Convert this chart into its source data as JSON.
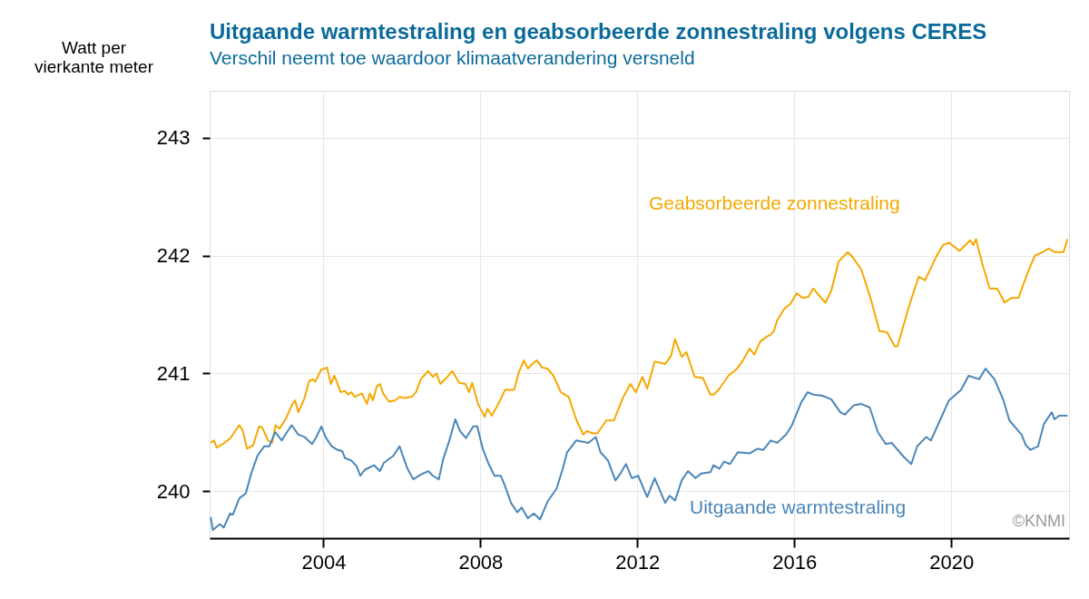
{
  "chart_data": {
    "type": "line",
    "title": "Uitgaande warmtestraling en geabsorbeerde zonnestraling volgens CERES",
    "subtitle": "Verschil neemt toe waardoor klimaatverandering versneld",
    "ylabel": "Watt per vierkante meter",
    "xlim": [
      2001.1,
      2023.0
    ],
    "xticks": [
      2004,
      2008,
      2012,
      2016,
      2020
    ],
    "ylim": [
      239.6,
      243.4
    ],
    "yticks": [
      240,
      241,
      242,
      243
    ],
    "grid": true,
    "annotations": [
      "©KNMI"
    ],
    "series": [
      {
        "name": "Geabsorbeerde zonnestraling",
        "color": "#f5a800",
        "x": [
          2001.13,
          2001.21,
          2001.28,
          2001.44,
          2001.63,
          2001.71,
          2001.86,
          2001.95,
          2002.05,
          2002.21,
          2002.36,
          2002.44,
          2002.59,
          2002.69,
          2002.78,
          2002.88,
          2003.05,
          2003.21,
          2003.28,
          2003.36,
          2003.52,
          2003.63,
          2003.72,
          2003.79,
          2003.94,
          2004.09,
          2004.19,
          2004.28,
          2004.44,
          2004.55,
          2004.63,
          2004.71,
          2004.8,
          2004.98,
          2005.11,
          2005.18,
          2005.26,
          2005.36,
          2005.44,
          2005.52,
          2005.67,
          2005.82,
          2005.94,
          2006.05,
          2006.25,
          2006.36,
          2006.48,
          2006.67,
          2006.79,
          2006.88,
          2006.98,
          2007.13,
          2007.28,
          2007.46,
          2007.62,
          2007.71,
          2007.79,
          2007.94,
          2008.11,
          2008.18,
          2008.29,
          2008.44,
          2008.63,
          2008.86,
          2008.98,
          2009.11,
          2009.21,
          2009.32,
          2009.44,
          2009.57,
          2009.71,
          2009.86,
          2010.05,
          2010.25,
          2010.44,
          2010.62,
          2010.71,
          2010.86,
          2010.98,
          2011.21,
          2011.4,
          2011.63,
          2011.82,
          2011.96,
          2012.13,
          2012.25,
          2012.44,
          2012.71,
          2012.86,
          2012.96,
          2013.13,
          2013.25,
          2013.46,
          2013.67,
          2013.86,
          2013.95,
          2014.09,
          2014.32,
          2014.54,
          2014.67,
          2014.86,
          2014.98,
          2015.13,
          2015.29,
          2015.4,
          2015.48,
          2015.56,
          2015.75,
          2015.9,
          2016.06,
          2016.21,
          2016.36,
          2016.48,
          2016.79,
          2016.94,
          2017.13,
          2017.36,
          2017.48,
          2017.71,
          2017.94,
          2018.17,
          2018.36,
          2018.56,
          2018.63,
          2018.94,
          2019.17,
          2019.33,
          2019.63,
          2019.79,
          2019.94,
          2020.21,
          2020.48,
          2020.56,
          2020.63,
          2020.79,
          2020.98,
          2021.17,
          2021.36,
          2021.52,
          2021.71,
          2021.94,
          2022.13,
          2022.33,
          2022.48,
          2022.63,
          2022.86,
          2022.96
        ],
        "values": [
          240.41,
          240.43,
          240.37,
          240.4,
          240.45,
          240.49,
          240.56,
          240.51,
          240.36,
          240.39,
          240.55,
          240.54,
          240.43,
          240.41,
          240.56,
          240.53,
          240.62,
          240.74,
          240.77,
          240.67,
          240.79,
          240.93,
          240.95,
          240.93,
          241.03,
          241.05,
          240.91,
          240.98,
          240.84,
          240.85,
          240.82,
          240.84,
          240.8,
          240.83,
          240.74,
          240.83,
          240.77,
          240.89,
          240.91,
          240.83,
          240.76,
          240.77,
          240.8,
          240.79,
          240.8,
          240.84,
          240.95,
          241.02,
          240.97,
          241.0,
          240.91,
          240.96,
          241.02,
          240.92,
          240.91,
          240.84,
          240.92,
          240.74,
          240.63,
          240.7,
          240.64,
          240.73,
          240.86,
          240.86,
          241.01,
          241.11,
          241.04,
          241.08,
          241.11,
          241.05,
          241.04,
          240.98,
          240.84,
          240.8,
          240.61,
          240.48,
          240.51,
          240.49,
          240.49,
          240.6,
          240.6,
          240.79,
          240.91,
          240.84,
          240.97,
          240.87,
          241.1,
          241.08,
          241.15,
          241.29,
          241.14,
          241.18,
          240.97,
          240.96,
          240.82,
          240.82,
          240.87,
          240.98,
          241.04,
          241.1,
          241.21,
          241.16,
          241.27,
          241.31,
          241.33,
          241.36,
          241.45,
          241.55,
          241.59,
          241.68,
          241.64,
          241.65,
          241.72,
          241.6,
          241.7,
          241.95,
          242.03,
          241.99,
          241.88,
          241.64,
          241.36,
          241.35,
          241.23,
          241.23,
          241.59,
          241.82,
          241.79,
          242.0,
          242.09,
          242.11,
          242.04,
          242.13,
          242.09,
          242.14,
          241.93,
          241.72,
          241.72,
          241.6,
          241.64,
          241.64,
          241.85,
          242.0,
          242.03,
          242.06,
          242.03,
          242.03,
          242.14
        ]
      },
      {
        "name": "Uitgaande warmtestraling",
        "color": "#4a86b8",
        "x": [
          2001.13,
          2001.18,
          2001.36,
          2001.46,
          2001.62,
          2001.69,
          2001.86,
          2002.02,
          2002.17,
          2002.32,
          2002.49,
          2002.62,
          2002.77,
          2002.94,
          2003.05,
          2003.19,
          2003.36,
          2003.52,
          2003.71,
          2003.82,
          2003.95,
          2004.05,
          2004.21,
          2004.36,
          2004.48,
          2004.55,
          2004.71,
          2004.85,
          2004.94,
          2005.05,
          2005.29,
          2005.44,
          2005.54,
          2005.78,
          2005.94,
          2006.13,
          2006.29,
          2006.48,
          2006.67,
          2006.79,
          2006.94,
          2007.05,
          2007.21,
          2007.36,
          2007.48,
          2007.63,
          2007.82,
          2007.92,
          2008.06,
          2008.21,
          2008.36,
          2008.52,
          2008.63,
          2008.78,
          2008.94,
          2009.05,
          2009.21,
          2009.36,
          2009.52,
          2009.71,
          2009.94,
          2010.09,
          2010.21,
          2010.44,
          2010.75,
          2010.94,
          2011.06,
          2011.25,
          2011.44,
          2011.55,
          2011.71,
          2011.86,
          2012.02,
          2012.25,
          2012.44,
          2012.71,
          2012.82,
          2012.96,
          2013.13,
          2013.29,
          2013.48,
          2013.63,
          2013.86,
          2013.94,
          2014.09,
          2014.21,
          2014.36,
          2014.56,
          2014.86,
          2015.06,
          2015.21,
          2015.4,
          2015.56,
          2015.79,
          2015.94,
          2016.17,
          2016.34,
          2016.48,
          2016.71,
          2016.94,
          2017.17,
          2017.29,
          2017.52,
          2017.71,
          2017.92,
          2018.13,
          2018.33,
          2018.48,
          2018.79,
          2018.98,
          2019.13,
          2019.36,
          2019.48,
          2019.71,
          2019.94,
          2020.25,
          2020.44,
          2020.71,
          2020.87,
          2021.1,
          2021.33,
          2021.48,
          2021.71,
          2021.79,
          2021.9,
          2022.02,
          2022.21,
          2022.36,
          2022.56,
          2022.63,
          2022.75,
          2022.96
        ],
        "values": [
          239.78,
          239.67,
          239.72,
          239.69,
          239.81,
          239.8,
          239.94,
          239.98,
          240.16,
          240.3,
          240.38,
          240.38,
          240.5,
          240.43,
          240.49,
          240.56,
          240.48,
          240.46,
          240.4,
          240.46,
          240.55,
          240.46,
          240.38,
          240.35,
          240.34,
          240.28,
          240.26,
          240.21,
          240.13,
          240.18,
          240.22,
          240.17,
          240.24,
          240.3,
          240.38,
          240.2,
          240.1,
          240.14,
          240.17,
          240.13,
          240.1,
          240.27,
          240.43,
          240.61,
          240.51,
          240.45,
          240.55,
          240.55,
          240.36,
          240.23,
          240.13,
          240.13,
          240.04,
          239.9,
          239.82,
          239.86,
          239.77,
          239.81,
          239.76,
          239.91,
          240.02,
          240.18,
          240.33,
          240.43,
          240.41,
          240.46,
          240.33,
          240.26,
          240.09,
          240.14,
          240.23,
          240.11,
          240.13,
          239.95,
          240.11,
          239.9,
          239.96,
          239.92,
          240.09,
          240.17,
          240.11,
          240.15,
          240.16,
          240.22,
          240.19,
          240.25,
          240.23,
          240.33,
          240.32,
          240.36,
          240.35,
          240.43,
          240.41,
          240.48,
          240.56,
          240.75,
          240.84,
          240.82,
          240.81,
          240.78,
          240.67,
          240.65,
          240.73,
          240.74,
          240.71,
          240.5,
          240.4,
          240.41,
          240.29,
          240.23,
          240.38,
          240.46,
          240.43,
          240.6,
          240.77,
          240.86,
          240.98,
          240.95,
          241.04,
          240.95,
          240.77,
          240.6,
          240.51,
          240.48,
          240.39,
          240.35,
          240.38,
          240.57,
          240.67,
          240.61,
          240.64,
          240.64
        ]
      }
    ]
  }
}
